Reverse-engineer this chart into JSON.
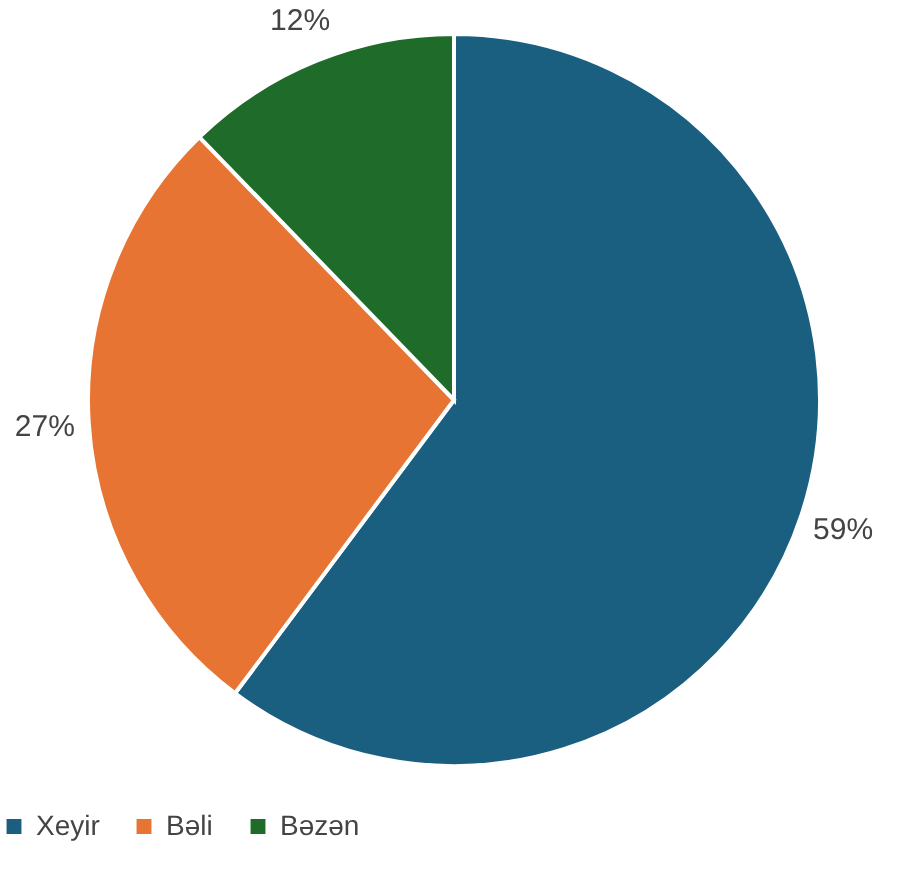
{
  "chart_data": {
    "type": "pie",
    "categories": [
      "Xeyir",
      "Bəli",
      "Bəzən"
    ],
    "values": [
      59,
      27,
      12
    ],
    "colors": [
      "#1a5f80",
      "#e87433",
      "#1e6b2a"
    ],
    "value_labels": [
      "59%",
      "27%",
      "12%"
    ],
    "legend": "bottom"
  }
}
